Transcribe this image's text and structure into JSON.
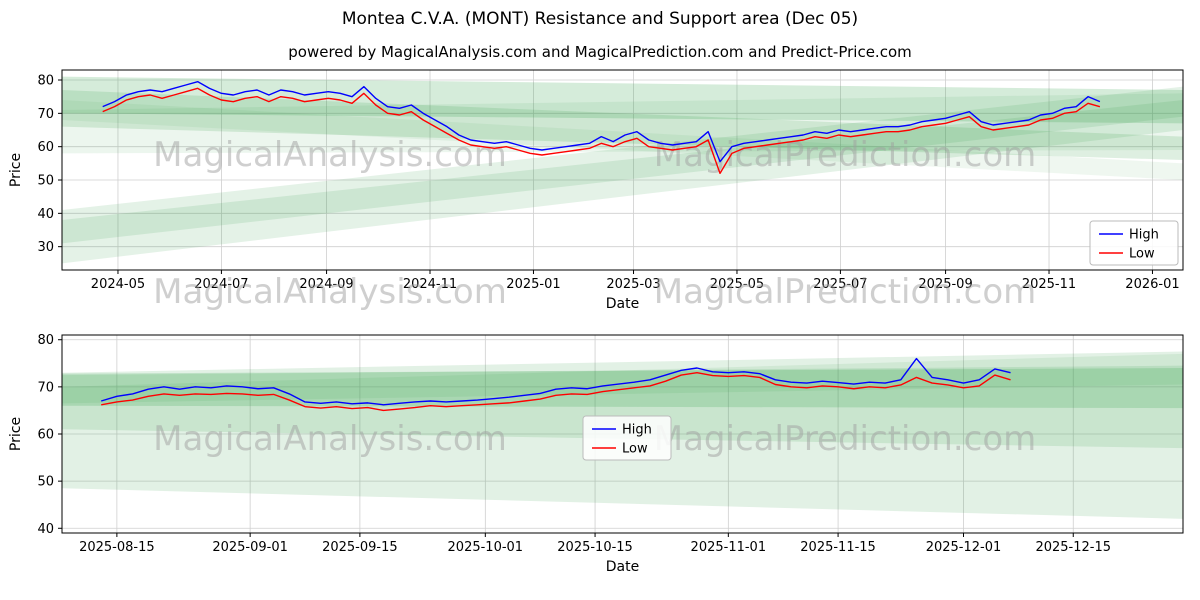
{
  "title": "Montea C.V.A. (MONT) Resistance and Support area (Dec 05)",
  "subtitle": "powered by MagicalAnalysis.com and MagicalPrediction.com and Predict-Price.com",
  "watermarks": [
    "MagicalAnalysis.com",
    "MagicalPrediction.com"
  ],
  "legend": {
    "items": [
      "High",
      "Low"
    ]
  },
  "colors": {
    "high": "#0000ff",
    "low": "#ff0000",
    "band": "#2f9e44",
    "grid": "#cfcfcf",
    "spine": "#000000",
    "text": "#000000",
    "watermark": "#a0a0a0",
    "legend_border": "#bbbbbb"
  },
  "chart_data": [
    {
      "name": "main-price-chart",
      "type": "line",
      "xlabel": "Date",
      "ylabel": "Price",
      "x_unit": "days since 2024-03-29",
      "x_domain": [
        0,
        661
      ],
      "ylim": [
        23,
        83
      ],
      "y_ticks": [
        30,
        40,
        50,
        60,
        70,
        80
      ],
      "x_ticks": [
        {
          "offset": 33,
          "label": "2024-05"
        },
        {
          "offset": 94,
          "label": "2024-07"
        },
        {
          "offset": 156,
          "label": "2024-09"
        },
        {
          "offset": 217,
          "label": "2024-11"
        },
        {
          "offset": 278,
          "label": "2025-01"
        },
        {
          "offset": 337,
          "label": "2025-03"
        },
        {
          "offset": 398,
          "label": "2025-05"
        },
        {
          "offset": 459,
          "label": "2025-07"
        },
        {
          "offset": 521,
          "label": "2025-09"
        },
        {
          "offset": 582,
          "label": "2025-11"
        },
        {
          "offset": 643,
          "label": "2026-01"
        }
      ],
      "series": [
        {
          "name": "High",
          "color": "high",
          "x_start": 24,
          "x_step": 7,
          "values": [
            72,
            73.5,
            75.5,
            76.5,
            77,
            76.5,
            77.5,
            78.5,
            79.5,
            77.5,
            76,
            75.5,
            76.5,
            77,
            75.5,
            77,
            76.5,
            75.5,
            76,
            76.5,
            76,
            75,
            78,
            74.5,
            72,
            71.5,
            72.5,
            70,
            68,
            66,
            63.5,
            62,
            61.5,
            61,
            61.5,
            60.5,
            59.5,
            59,
            59.5,
            60,
            60.5,
            61,
            63,
            61.5,
            63.5,
            64.5,
            62,
            61,
            60.5,
            61,
            61.5,
            64.5,
            55.5,
            60,
            61,
            61.5,
            62,
            62.5,
            63,
            63.5,
            64.5,
            64,
            65,
            64.5,
            65,
            65.5,
            66,
            66,
            66.5,
            67.5,
            68,
            68.5,
            69.5,
            70.5,
            67.5,
            66.5,
            67,
            67.5,
            68,
            69.5,
            70,
            71.5,
            72,
            75,
            73.5
          ]
        },
        {
          "name": "Low",
          "color": "low",
          "x_start": 24,
          "x_step": 7,
          "values": [
            70.5,
            72,
            74,
            75,
            75.5,
            74.5,
            75.5,
            76.5,
            77.5,
            75.5,
            74,
            73.5,
            74.5,
            75,
            73.5,
            75,
            74.5,
            73.5,
            74,
            74.5,
            74,
            73,
            76,
            72.5,
            70,
            69.5,
            70.5,
            68,
            66,
            64,
            62,
            60.5,
            60,
            59.5,
            60,
            59,
            58,
            57.5,
            58,
            58.5,
            59,
            59.5,
            61,
            60,
            61.5,
            62.5,
            60,
            59.5,
            59,
            59.5,
            60,
            62,
            52,
            58,
            59.5,
            60,
            60.5,
            61,
            61.5,
            62,
            63,
            62.5,
            63.5,
            63,
            63.5,
            64,
            64.5,
            64.5,
            65,
            66,
            66.5,
            67,
            68,
            69,
            66,
            65,
            65.5,
            66,
            66.5,
            68,
            68.5,
            70,
            70.5,
            73,
            72
          ]
        }
      ],
      "bands": [
        {
          "points": [
            [
              0,
              81
            ],
            [
              661,
              77
            ],
            [
              661,
              67
            ],
            [
              0,
              70
            ]
          ],
          "opacity": 0.2
        },
        {
          "points": [
            [
              0,
              77
            ],
            [
              661,
              63
            ],
            [
              661,
              56
            ],
            [
              0,
              66
            ]
          ],
          "opacity": 0.16
        },
        {
          "points": [
            [
              0,
              74
            ],
            [
              661,
              55
            ],
            [
              661,
              50
            ],
            [
              0,
              68
            ]
          ],
          "opacity": 0.08
        },
        {
          "points": [
            [
              0,
              41
            ],
            [
              661,
              78
            ],
            [
              661,
              65
            ],
            [
              0,
              25
            ]
          ],
          "opacity": 0.13
        },
        {
          "points": [
            [
              0,
              38
            ],
            [
              661,
              74
            ],
            [
              661,
              69
            ],
            [
              0,
              31
            ]
          ],
          "opacity": 0.13
        },
        {
          "points": [
            [
              0,
              71
            ],
            [
              661,
              76
            ],
            [
              661,
              59
            ],
            [
              0,
              58
            ]
          ],
          "opacity": 0.09
        }
      ],
      "legend_position": "right"
    },
    {
      "name": "forecast-price-chart",
      "type": "line",
      "xlabel": "Date",
      "ylabel": "Price",
      "x_unit": "days since 2025-08-08",
      "x_domain": [
        0,
        143
      ],
      "ylim": [
        39,
        81
      ],
      "y_ticks": [
        40,
        50,
        60,
        70,
        80
      ],
      "x_ticks": [
        {
          "offset": 7,
          "label": "2025-08-15"
        },
        {
          "offset": 24,
          "label": "2025-09-01"
        },
        {
          "offset": 38,
          "label": "2025-09-15"
        },
        {
          "offset": 54,
          "label": "2025-10-01"
        },
        {
          "offset": 68,
          "label": "2025-10-15"
        },
        {
          "offset": 85,
          "label": "2025-11-01"
        },
        {
          "offset": 99,
          "label": "2025-11-15"
        },
        {
          "offset": 115,
          "label": "2025-12-01"
        },
        {
          "offset": 129,
          "label": "2025-12-15"
        }
      ],
      "series": [
        {
          "name": "High",
          "color": "high",
          "x_start": 5,
          "x_step": 2,
          "values": [
            67,
            68,
            68.5,
            69.5,
            70,
            69.5,
            70,
            69.8,
            70.2,
            70,
            69.6,
            69.8,
            68.5,
            66.8,
            66.5,
            66.8,
            66.4,
            66.6,
            66.2,
            66.5,
            66.8,
            67,
            66.8,
            67,
            67.2,
            67.5,
            67.8,
            68.2,
            68.6,
            69.5,
            69.8,
            69.6,
            70.2,
            70.6,
            71,
            71.5,
            72.5,
            73.5,
            74,
            73.2,
            73,
            73.2,
            72.8,
            71.5,
            71,
            70.8,
            71.2,
            70.9,
            70.6,
            71,
            70.8,
            71.5,
            76,
            72,
            71.5,
            70.8,
            71.5,
            73.8,
            73
          ]
        },
        {
          "name": "Low",
          "color": "low",
          "x_start": 5,
          "x_step": 2,
          "values": [
            66.2,
            66.8,
            67.2,
            68,
            68.5,
            68.2,
            68.5,
            68.4,
            68.6,
            68.5,
            68.2,
            68.4,
            67.2,
            65.8,
            65.5,
            65.8,
            65.4,
            65.6,
            65,
            65.3,
            65.6,
            66,
            65.8,
            66,
            66.2,
            66.4,
            66.6,
            67,
            67.4,
            68.2,
            68.5,
            68.4,
            69,
            69.4,
            69.8,
            70.2,
            71.2,
            72.5,
            73,
            72.4,
            72.2,
            72.4,
            72,
            70.5,
            70,
            69.8,
            70.2,
            70,
            69.6,
            70,
            69.8,
            70.4,
            72,
            70.8,
            70.4,
            69.8,
            70.2,
            72.5,
            71.5
          ]
        }
      ],
      "bands": [
        {
          "points": [
            [
              0,
              73
            ],
            [
              143,
              77.5
            ],
            [
              143,
              42
            ],
            [
              0,
              48.5
            ]
          ],
          "opacity": 0.14
        },
        {
          "points": [
            [
              0,
              72.5
            ],
            [
              143,
              74.5
            ],
            [
              143,
              57
            ],
            [
              0,
              61
            ]
          ],
          "opacity": 0.14
        },
        {
          "points": [
            [
              0,
              72.8
            ],
            [
              143,
              74
            ],
            [
              143,
              65.5
            ],
            [
              0,
              66
            ]
          ],
          "opacity": 0.2
        },
        {
          "points": [
            [
              0,
              70
            ],
            [
              143,
              77
            ],
            [
              143,
              70.5
            ],
            [
              0,
              66.5
            ]
          ],
          "opacity": 0.1
        }
      ],
      "legend_position": "center"
    }
  ]
}
